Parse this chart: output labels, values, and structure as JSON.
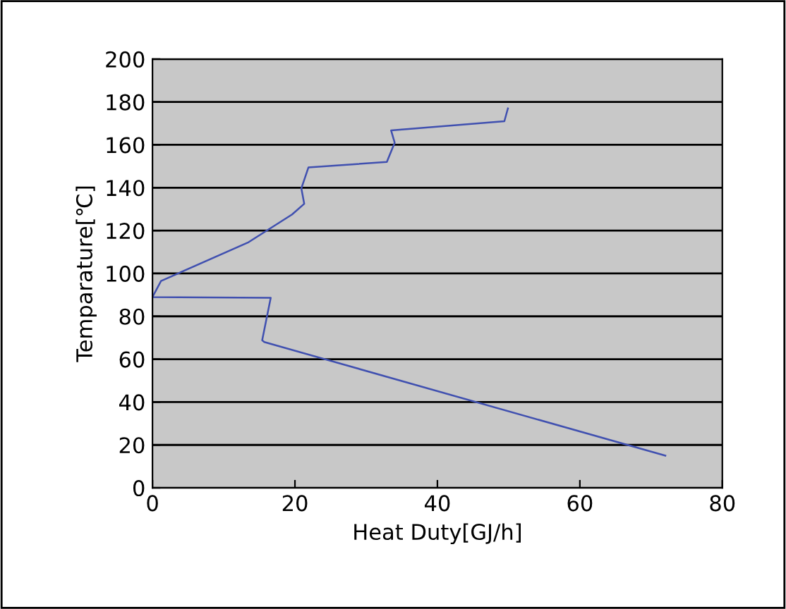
{
  "chart_data": {
    "type": "line",
    "xlabel": "Heat Duty[GJ/h]",
    "ylabel": "Temparature[℃]",
    "series": [
      {
        "color": "#4050b0",
        "x": [
          49.9,
          49.4,
          33.5,
          34.0,
          32.9,
          21.9,
          20.9,
          21.3,
          19.6,
          13.5,
          1.2,
          0,
          16.6,
          15.4,
          15.7,
          72.0
        ],
        "values": [
          177,
          171,
          166.7,
          161,
          152,
          149.5,
          139.7,
          132.5,
          127.5,
          114.6,
          96.5,
          89,
          88.6,
          68.8,
          68,
          15.0
        ]
      }
    ],
    "xlim": [
      0,
      80
    ],
    "xticks": [
      0,
      20,
      40,
      60,
      80
    ],
    "ylim": [
      0,
      200
    ],
    "yticks": [
      0,
      20,
      40,
      60,
      80,
      100,
      120,
      140,
      160,
      180,
      200
    ],
    "grid": "y",
    "marker": "none",
    "line_style": "solid",
    "legend": false
  }
}
